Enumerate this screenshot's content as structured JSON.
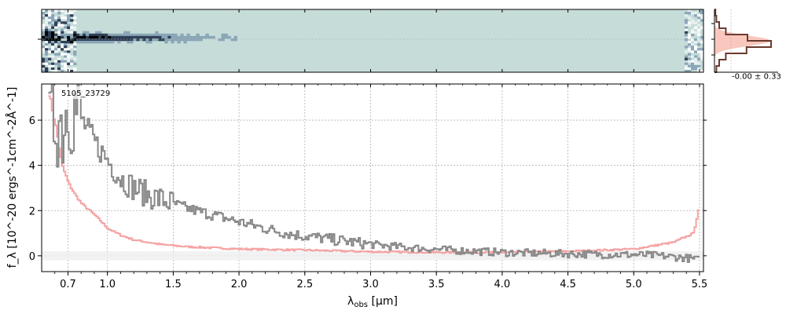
{
  "chart_data": [
    {
      "type": "heatmap",
      "panel": "2d-spectrum",
      "colormap": [
        "#000000",
        "#2f3f55",
        "#8aa6b8",
        "#c8dcdc",
        "#ffffff"
      ],
      "background_color": "#c5dcd9"
    },
    {
      "type": "line",
      "panel": "1d-spectrum",
      "object_label": "5105_23729",
      "xlabel_main": "λ",
      "xlabel_sub": "obs",
      "xlabel_unit": " [μm]",
      "ylabel": "f_λ [10^-20 ergs^-1cm^-2Å^-1]",
      "x_ticks": [
        "0.7",
        "1.0",
        "1.5",
        "2.0",
        "2.5",
        "3.0",
        "3.5",
        "4.0",
        "4.5",
        "5.0",
        "5.5"
      ],
      "x_tick_values": [
        0.7,
        1.0,
        1.5,
        2.0,
        2.5,
        3.0,
        3.5,
        4.0,
        4.5,
        5.0,
        5.5
      ],
      "y_ticks": [
        "0",
        "2",
        "4",
        "6"
      ],
      "y_tick_values": [
        0,
        2,
        4,
        6
      ],
      "xlim": [
        0.5,
        5.53
      ],
      "ylim": [
        -0.7,
        7.6
      ],
      "grid": true,
      "series": [
        {
          "color": "#888888",
          "x": [
            0.55,
            0.6,
            0.65,
            0.7,
            0.75,
            0.8,
            0.85,
            0.9,
            0.95,
            1.0,
            1.05,
            1.1,
            1.2,
            1.3,
            1.4,
            1.5,
            1.6,
            1.7,
            1.8,
            1.9,
            2.0,
            2.2,
            2.4,
            2.6,
            2.8,
            3.0,
            3.2,
            3.4,
            3.6,
            3.8,
            4.0,
            4.2,
            4.4,
            4.6,
            4.8,
            5.0,
            5.2,
            5.4,
            5.5
          ],
          "y": [
            5.0,
            6.5,
            5.8,
            7.0,
            6.5,
            6.0,
            5.5,
            5.0,
            4.6,
            4.2,
            3.8,
            3.4,
            3.0,
            2.7,
            2.5,
            2.3,
            2.1,
            1.95,
            1.8,
            1.65,
            1.5,
            1.2,
            0.95,
            0.8,
            0.65,
            0.5,
            0.4,
            0.32,
            0.25,
            0.2,
            0.15,
            0.12,
            0.1,
            0.08,
            0.05,
            0.05,
            0.0,
            -0.1,
            -0.2
          ]
        },
        {
          "color": "#f5a3a3",
          "x": [
            0.55,
            0.6,
            0.65,
            0.7,
            0.75,
            0.8,
            0.9,
            1.0,
            1.1,
            1.2,
            1.4,
            1.6,
            1.8,
            2.0,
            2.5,
            3.0,
            3.5,
            4.0,
            4.5,
            5.0,
            5.3,
            5.45,
            5.5
          ],
          "y": [
            7.2,
            5.8,
            4.0,
            3.2,
            2.7,
            2.3,
            1.8,
            1.2,
            0.9,
            0.7,
            0.5,
            0.4,
            0.35,
            0.3,
            0.25,
            0.18,
            0.15,
            0.15,
            0.2,
            0.3,
            0.6,
            1.0,
            2.4
          ]
        }
      ]
    },
    {
      "type": "histogram",
      "panel": "residual-histogram",
      "stat_label": "-0.00 ± 0.33",
      "bins": [
        -2.0,
        -1.6,
        -1.2,
        -0.8,
        -0.4,
        0.0,
        0.4,
        0.8,
        1.2,
        1.6,
        2.0
      ],
      "counts": [
        1,
        2,
        5,
        12,
        35,
        60,
        34,
        12,
        5,
        2
      ],
      "gaussian_color": "#f9c7bd",
      "step_color": "#6b3a2e"
    }
  ]
}
